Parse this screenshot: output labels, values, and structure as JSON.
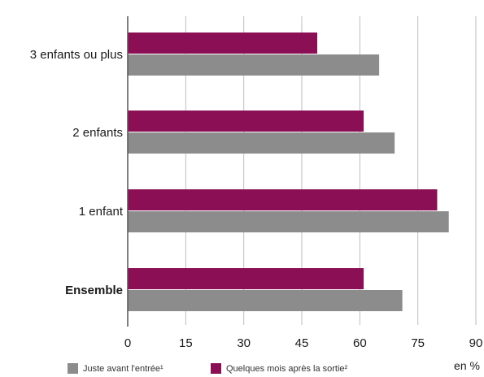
{
  "chart_data": {
    "type": "bar",
    "orientation": "horizontal",
    "categories": [
      "3 enfants ou plus",
      "2 enfants",
      "1 enfant",
      "Ensemble"
    ],
    "series": [
      {
        "name": "Quelques mois après la sortie²",
        "color": "#8b0f55",
        "values": [
          49,
          61,
          80,
          61
        ]
      },
      {
        "name": "Juste avant l'entrée¹",
        "color": "#8c8c8c",
        "values": [
          65,
          69,
          83,
          71
        ]
      }
    ],
    "xaxis": {
      "min": 0,
      "max": 90,
      "ticks": [
        0,
        15,
        30,
        45,
        60,
        75,
        90
      ],
      "unit": "en %"
    },
    "grid": "vertical",
    "legend": {
      "placement": "bottom",
      "items": [
        {
          "label": "Juste avant l'entrée¹",
          "color": "#8c8c8c"
        },
        {
          "label": "Quelques mois après la sortie²",
          "color": "#8b0f55"
        }
      ]
    }
  }
}
